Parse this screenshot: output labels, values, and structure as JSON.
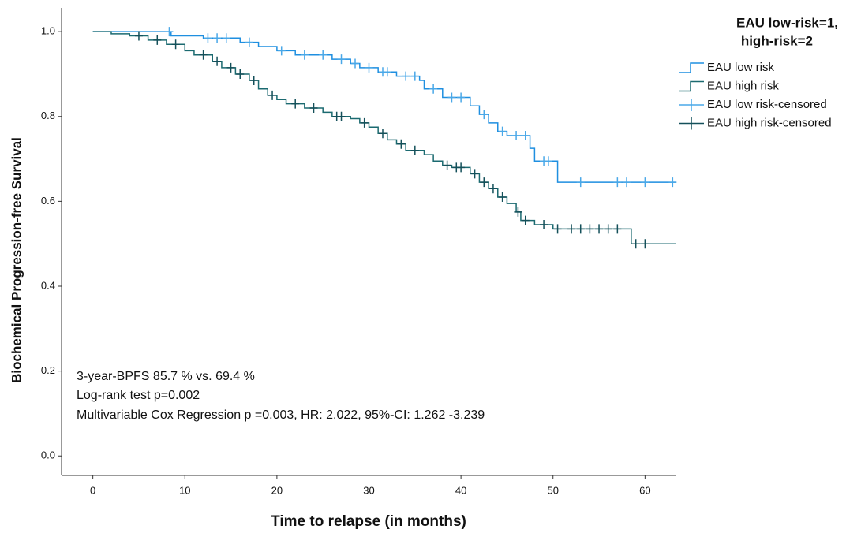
{
  "chart_data": {
    "type": "step",
    "xlabel": "Time to relapse (in months)",
    "ylabel": "Biochemical Progression-free Survival",
    "xlim": [
      -3.4,
      63.4
    ],
    "ylim": [
      -0.046,
      1.056
    ],
    "xticks": [
      0,
      10,
      20,
      30,
      40,
      50,
      60
    ],
    "yticks": [
      {
        "value": 0,
        "label": "0.0"
      },
      0.2,
      0.4,
      0.6,
      0.8,
      {
        "value": 1,
        "label": "1.0"
      }
    ],
    "legend_title": [
      "EAU low-risk=1,",
      "high-risk=2"
    ],
    "legend": "right",
    "annotations": [
      "3-year-BPFS 85.7 % vs. 69.4 %",
      "Log-rank test p=0.002",
      "Multivariable Cox Regression p =0.003, HR: 2.022, 95%-CI: 1.262 -3.239"
    ],
    "series": [
      {
        "name": "EAU low risk",
        "color": "#1f8fe0",
        "kind": "step",
        "x": [
          0,
          8.5,
          12,
          16,
          18,
          20,
          22,
          26,
          28,
          29,
          31,
          33,
          35.5,
          36,
          38,
          41,
          42,
          43,
          44,
          45,
          47.5,
          48,
          50.5,
          63.4
        ],
        "values": [
          1,
          0.99,
          0.985,
          0.975,
          0.965,
          0.955,
          0.945,
          0.935,
          0.925,
          0.915,
          0.905,
          0.895,
          0.885,
          0.865,
          0.845,
          0.825,
          0.805,
          0.785,
          0.765,
          0.755,
          0.725,
          0.695,
          0.645,
          0.645
        ]
      },
      {
        "name": "EAU high risk",
        "color": "#1b6a70",
        "kind": "step",
        "x": [
          0,
          2,
          4,
          6,
          8,
          10,
          11,
          13,
          14,
          15.5,
          17,
          18,
          19,
          20,
          21,
          23,
          25,
          26,
          28,
          29,
          30,
          31,
          32,
          33,
          34,
          36,
          37,
          38,
          39,
          41,
          42,
          43,
          44,
          45,
          46,
          46.5,
          48,
          50,
          58.5,
          63.4
        ],
        "values": [
          1,
          0.995,
          0.99,
          0.98,
          0.97,
          0.955,
          0.945,
          0.93,
          0.915,
          0.9,
          0.885,
          0.865,
          0.85,
          0.84,
          0.83,
          0.82,
          0.81,
          0.8,
          0.795,
          0.785,
          0.775,
          0.76,
          0.745,
          0.735,
          0.72,
          0.71,
          0.695,
          0.685,
          0.68,
          0.665,
          0.645,
          0.63,
          0.61,
          0.595,
          0.575,
          0.555,
          0.545,
          0.535,
          0.5,
          0.5
        ]
      },
      {
        "name": "EAU low risk-censored",
        "color": "#4aa8e8",
        "kind": "censor",
        "x": [
          8.3,
          12.5,
          13.5,
          14.5,
          17,
          20.5,
          23,
          25,
          27,
          28.5,
          30,
          31.5,
          32,
          34,
          35,
          37,
          39,
          40,
          42.5,
          44.5,
          46,
          47,
          49,
          49.5,
          53,
          57,
          58,
          60,
          63
        ],
        "values": [
          1,
          0.985,
          0.985,
          0.985,
          0.975,
          0.955,
          0.945,
          0.945,
          0.935,
          0.925,
          0.915,
          0.905,
          0.905,
          0.895,
          0.895,
          0.865,
          0.845,
          0.845,
          0.805,
          0.765,
          0.755,
          0.755,
          0.695,
          0.695,
          0.645,
          0.645,
          0.645,
          0.645,
          0.645
        ]
      },
      {
        "name": "EAU high risk-censored",
        "color": "#14505a",
        "kind": "censor",
        "x": [
          5,
          7,
          9,
          12,
          13.5,
          15,
          16,
          17.5,
          19.5,
          22,
          24,
          26.5,
          27,
          29.5,
          31.5,
          33.5,
          35,
          38.5,
          39.5,
          40,
          41.5,
          42.5,
          43.5,
          44.5,
          46.2,
          47,
          49,
          50.5,
          52,
          53,
          54,
          55,
          56,
          57,
          59,
          60
        ],
        "values": [
          0.99,
          0.98,
          0.97,
          0.945,
          0.93,
          0.915,
          0.9,
          0.885,
          0.85,
          0.83,
          0.82,
          0.8,
          0.8,
          0.785,
          0.76,
          0.735,
          0.72,
          0.685,
          0.68,
          0.68,
          0.665,
          0.645,
          0.63,
          0.61,
          0.575,
          0.555,
          0.545,
          0.535,
          0.535,
          0.535,
          0.535,
          0.535,
          0.535,
          0.535,
          0.5,
          0.5
        ]
      }
    ]
  }
}
